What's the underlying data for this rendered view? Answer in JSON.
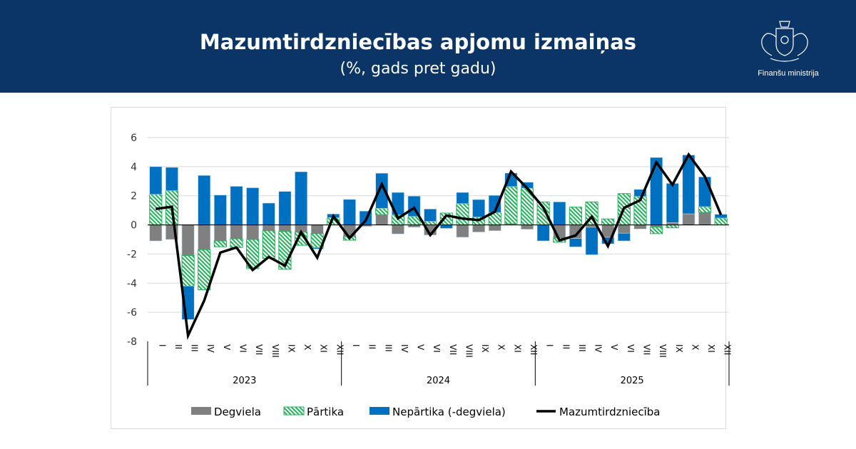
{
  "header": {
    "title": "Mazumtirdzniecības apjomu izmaiņas",
    "subtitle": "(%, gads pret gadu)",
    "logo_text": "Finanšu ministrija",
    "background": "#0b3567"
  },
  "chart_data": {
    "type": "bar",
    "stacked": true,
    "title": "Mazumtirdzniecības apjomu izmaiņas",
    "subtitle": "(%, gads pret gadu)",
    "ylim": [
      -8,
      6
    ],
    "yticks": [
      -8,
      -6,
      -4,
      -2,
      0,
      2,
      4,
      6
    ],
    "grid": true,
    "legend_position": "bottom",
    "years": [
      "2023",
      "2024",
      "2025"
    ],
    "months": [
      "I",
      "II",
      "III",
      "IV",
      "V",
      "VI",
      "VII",
      "VIII",
      "IX",
      "X",
      "XI",
      "XII"
    ],
    "series": [
      {
        "name": "Degviela",
        "kind": "bar",
        "color": "#808080",
        "values": [
          -1.1,
          -1.0,
          -2.1,
          -1.7,
          -1.1,
          -0.95,
          -1.0,
          -0.4,
          -0.45,
          -0.5,
          -0.6,
          0,
          -0.8,
          -0.1,
          0.7,
          -0.62,
          -0.16,
          -0.7,
          0,
          -0.85,
          -0.49,
          -0.4,
          0.08,
          -0.3,
          0,
          -0.9,
          -0.93,
          -0.16,
          -0.85,
          -0.57,
          -0.28,
          -0.15,
          0.16,
          0.76,
          0.86,
          0
        ]
      },
      {
        "name": "Pārtika",
        "kind": "bar",
        "color": "#22b35a",
        "hatched": true,
        "values": [
          2.1,
          2.35,
          -2.1,
          -2.75,
          -0.4,
          -0.6,
          -2.0,
          -1.9,
          -2.6,
          -0.9,
          -0.95,
          0.5,
          -0.25,
          0,
          0.44,
          0.68,
          0.58,
          0.24,
          0.81,
          1.46,
          0.54,
          0.85,
          2.55,
          2.52,
          1.58,
          -0.29,
          1.22,
          1.58,
          0.41,
          2.15,
          1.95,
          -0.45,
          -0.2,
          0,
          0.39,
          0.47
        ]
      },
      {
        "name": "Nepārtika (-degviela)",
        "kind": "bar",
        "color": "#0070c0",
        "values": [
          1.9,
          1.6,
          -2.3,
          3.4,
          2.05,
          2.65,
          2.55,
          1.5,
          2.3,
          3.65,
          -0.1,
          0.25,
          1.75,
          0.95,
          2.41,
          1.55,
          1.4,
          0.85,
          -0.24,
          0.77,
          1.2,
          1.18,
          0.93,
          0.41,
          -1.1,
          1.58,
          -0.58,
          -1.89,
          -0.45,
          -0.53,
          0.49,
          4.63,
          2.69,
          4.04,
          2.05,
          0.26
        ]
      },
      {
        "name": "Mazumtirdzniecība",
        "kind": "line",
        "color": "#000000",
        "values": [
          1.1,
          1.25,
          -7.6,
          -5.2,
          -1.9,
          -1.55,
          -3.1,
          -2.2,
          -2.8,
          -0.5,
          -2.25,
          0.6,
          -0.9,
          0.3,
          2.8,
          0.45,
          1.17,
          -0.7,
          0.65,
          0.44,
          0.33,
          0.9,
          3.66,
          2.52,
          1.2,
          -1.06,
          -0.73,
          0.57,
          -1.46,
          1.17,
          1.7,
          4.3,
          2.76,
          4.83,
          3.33,
          0.7
        ]
      }
    ]
  }
}
